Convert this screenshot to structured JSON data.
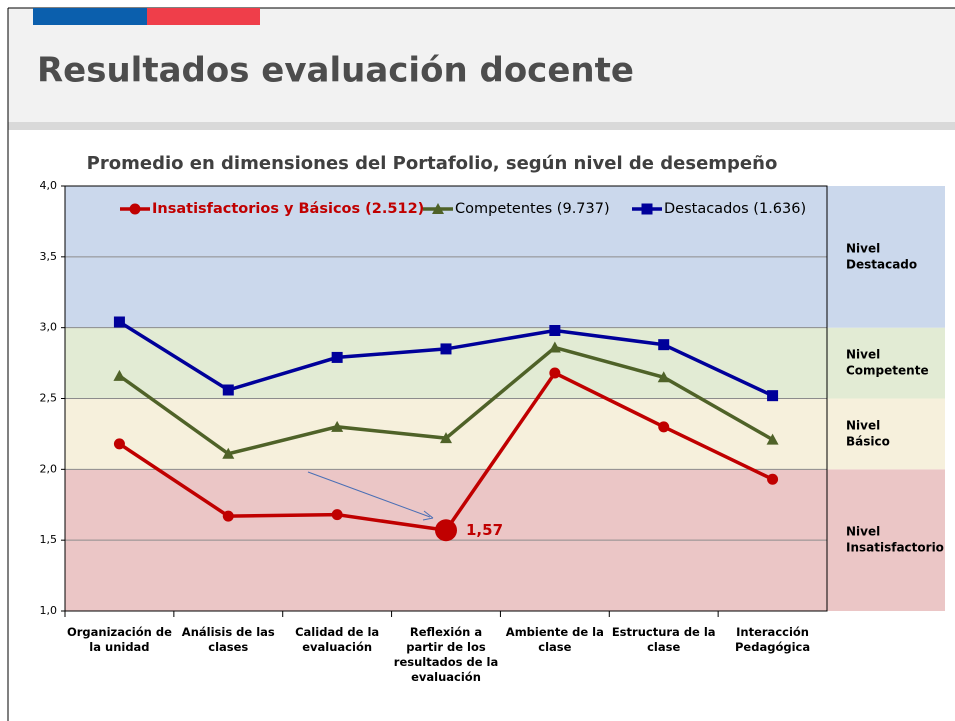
{
  "header": {
    "title": "Resultados evaluación docente"
  },
  "chart_data": {
    "type": "line",
    "title": "Promedio en dimensiones del Portafolio, según nivel de desempeño",
    "categories": [
      "Organización de la unidad",
      "Análisis de las clases",
      "Calidad de la evaluación",
      "Reflexión a partir de los resultados de la evaluación",
      "Ambiente de la clase",
      "Estructura de la clase",
      "Interacción Pedagógica"
    ],
    "series": [
      {
        "name": "Insatisfactorios y Básicos (2.512)",
        "color": "#c00000",
        "marker": "circle",
        "values": [
          2.18,
          1.67,
          1.68,
          1.57,
          2.68,
          2.3,
          1.93
        ],
        "value_labels": [
          null,
          null,
          null,
          "1,57",
          null,
          null,
          null
        ]
      },
      {
        "name": "Competentes (9.737)",
        "color": "#4f6228",
        "marker": "triangle",
        "values": [
          2.66,
          2.11,
          2.3,
          2.22,
          2.86,
          2.65,
          2.21
        ]
      },
      {
        "name": "Destacados (1.636)",
        "color": "#00009a",
        "marker": "square",
        "values": [
          3.04,
          2.56,
          2.79,
          2.85,
          2.98,
          2.88,
          2.52
        ]
      }
    ],
    "ylim": [
      1,
      4
    ],
    "yticks": [
      {
        "value": 1,
        "label": "1,0"
      },
      {
        "value": 1.5,
        "label": "1,5"
      },
      {
        "value": 2,
        "label": "2,0"
      },
      {
        "value": 2.5,
        "label": "2,5"
      },
      {
        "value": 3,
        "label": "3,0"
      },
      {
        "value": 3.5,
        "label": "3,5"
      },
      {
        "value": 4,
        "label": "4,0"
      }
    ],
    "grid": true,
    "legend": "top",
    "bands": [
      {
        "label": [
          "Nivel",
          "Insatisfactorio"
        ],
        "from": 1,
        "to": 2,
        "color": "#ebc6c6"
      },
      {
        "label": [
          "Nivel",
          "Básico"
        ],
        "from": 2,
        "to": 2.5,
        "color": "#f6f0dc"
      },
      {
        "label": [
          "Nivel",
          "Competente"
        ],
        "from": 2.5,
        "to": 3,
        "color": "#e2ebd4"
      },
      {
        "label": [
          "Nivel",
          "Destacado"
        ],
        "from": 3,
        "to": 4,
        "color": "#cbd8ec"
      }
    ]
  }
}
